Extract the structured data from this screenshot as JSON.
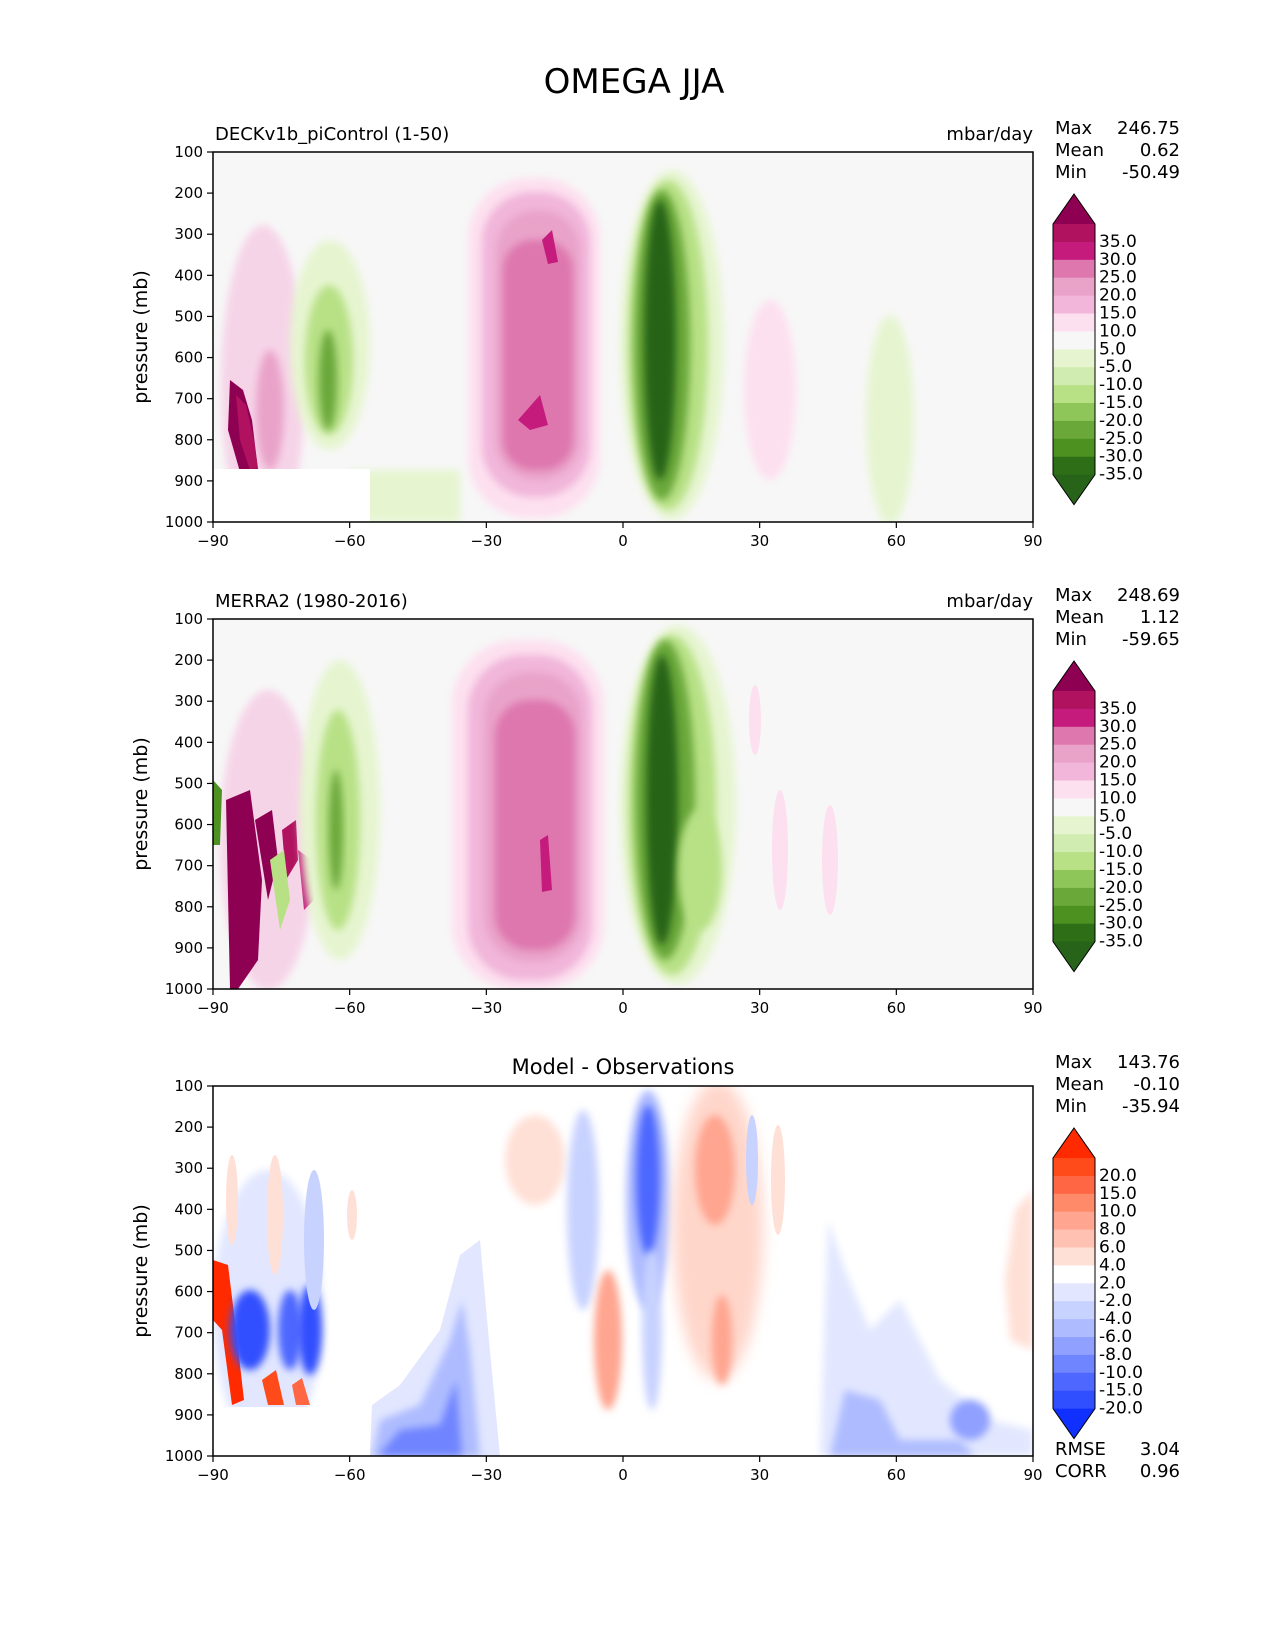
{
  "title": "OMEGA JJA",
  "axes": {
    "ylabel": "pressure (mb)",
    "yticks": [
      "100",
      "200",
      "300",
      "400",
      "500",
      "600",
      "700",
      "800",
      "900",
      "1000"
    ],
    "xticks": [
      "−90",
      "−60",
      "−30",
      "0",
      "30",
      "60",
      "90"
    ]
  },
  "panels": [
    {
      "left_title": "DECKv1b_piControl (1-50)",
      "center_title": "",
      "units": "mbar/day",
      "stats": [
        [
          "Max",
          "246.75"
        ],
        [
          "Mean",
          "0.62"
        ],
        [
          "Min",
          "-50.49"
        ]
      ],
      "extra_stats": []
    },
    {
      "left_title": "MERRA2 (1980-2016)",
      "center_title": "",
      "units": "mbar/day",
      "stats": [
        [
          "Max",
          "248.69"
        ],
        [
          "Mean",
          "1.12"
        ],
        [
          "Min",
          "-59.65"
        ]
      ],
      "extra_stats": []
    },
    {
      "left_title": "",
      "center_title": "Model - Observations",
      "units": "",
      "stats": [
        [
          "Max",
          "143.76"
        ],
        [
          "Mean",
          "-0.10"
        ],
        [
          "Min",
          "-35.94"
        ]
      ],
      "extra_stats": [
        [
          "RMSE",
          "3.04"
        ],
        [
          "CORR",
          "0.96"
        ]
      ]
    }
  ],
  "colorbars": {
    "field": {
      "labels": [
        "35.0",
        "30.0",
        "25.0",
        "20.0",
        "15.0",
        "10.0",
        "5.0",
        "-5.0",
        "-10.0",
        "-15.0",
        "-20.0",
        "-25.0",
        "-30.0",
        "-35.0"
      ],
      "colors": [
        "#8e0152",
        "#b0125f",
        "#c51b7d",
        "#de77ae",
        "#e9a3c9",
        "#f1b6da",
        "#fde0ef",
        "#f7f7f7",
        "#e6f5d0",
        "#d0ecb0",
        "#b8e186",
        "#8fc65a",
        "#6aa83a",
        "#4d9221",
        "#2d6e16",
        "#276419"
      ]
    },
    "diff": {
      "labels": [
        "20.0",
        "15.0",
        "10.0",
        "8.0",
        "6.0",
        "4.0",
        "2.0",
        "-2.0",
        "-4.0",
        "-6.0",
        "-8.0",
        "-10.0",
        "-15.0",
        "-20.0"
      ],
      "colors": [
        "#ff2a00",
        "#ff4a1a",
        "#ff6644",
        "#ff8a6a",
        "#ffa590",
        "#ffc2b2",
        "#ffe0d6",
        "#ffffff",
        "#e2e7ff",
        "#c8d2ff",
        "#aebcff",
        "#8fa0ff",
        "#6f84ff",
        "#4e68ff",
        "#3050ff",
        "#1030ff"
      ]
    }
  },
  "chart_data": [
    {
      "type": "contour",
      "title": "DECKv1b_piControl (1-50)",
      "units": "mbar/day",
      "xlabel": "",
      "ylabel": "pressure (mb)",
      "xlim": [
        -90,
        90
      ],
      "ylim": [
        1000,
        100
      ],
      "features": [
        {
          "lat": [
            -90,
            -80
          ],
          "p": [
            650,
            870
          ],
          "value": 35,
          "kind": "pos"
        },
        {
          "lat": [
            -88,
            -70
          ],
          "p": [
            250,
            880
          ],
          "value": 10,
          "kind": "pos"
        },
        {
          "lat": [
            -70,
            -60
          ],
          "p": [
            250,
            870
          ],
          "value": -10,
          "kind": "neg"
        },
        {
          "lat": [
            -34,
            -8
          ],
          "p": [
            170,
            980
          ],
          "value": 15,
          "kind": "pos"
        },
        {
          "lat": [
            -30,
            -12
          ],
          "p": [
            220,
            900
          ],
          "value": 25,
          "kind": "pos"
        },
        {
          "lat": [
            0,
            20
          ],
          "p": [
            160,
            990
          ],
          "value": -15,
          "kind": "neg"
        },
        {
          "lat": [
            3,
            12
          ],
          "p": [
            220,
            880
          ],
          "value": -35,
          "kind": "neg"
        },
        {
          "lat": [
            25,
            35
          ],
          "p": [
            300,
            900
          ],
          "value": 5,
          "kind": "pos"
        },
        {
          "lat": [
            50,
            62
          ],
          "p": [
            480,
            1000
          ],
          "value": -5,
          "kind": "neg"
        }
      ],
      "missing": {
        "lat": [
          -90,
          -55
        ],
        "p": [
          870,
          1000
        ]
      }
    },
    {
      "type": "contour",
      "title": "MERRA2 (1980-2016)",
      "units": "mbar/day",
      "xlabel": "",
      "ylabel": "pressure (mb)",
      "xlim": [
        -90,
        90
      ],
      "ylim": [
        1000,
        100
      ],
      "features": [
        {
          "lat": [
            -90,
            -78
          ],
          "p": [
            600,
            1000
          ],
          "value": 35,
          "kind": "pos"
        },
        {
          "lat": [
            -88,
            -70
          ],
          "p": [
            300,
            1000
          ],
          "value": 10,
          "kind": "pos"
        },
        {
          "lat": [
            -70,
            -60
          ],
          "p": [
            240,
            900
          ],
          "value": -10,
          "kind": "neg"
        },
        {
          "lat": [
            -36,
            -6
          ],
          "p": [
            160,
            1000
          ],
          "value": 15,
          "kind": "pos"
        },
        {
          "lat": [
            -32,
            -10
          ],
          "p": [
            220,
            900
          ],
          "value": 25,
          "kind": "pos"
        },
        {
          "lat": [
            0,
            22
          ],
          "p": [
            160,
            990
          ],
          "value": -15,
          "kind": "neg"
        },
        {
          "lat": [
            3,
            12
          ],
          "p": [
            230,
            880
          ],
          "value": -35,
          "kind": "neg"
        },
        {
          "lat": [
            28,
            44
          ],
          "p": [
            420,
            900
          ],
          "value": 5,
          "kind": "pos"
        }
      ],
      "missing": null
    },
    {
      "type": "contour",
      "title": "Model - Observations",
      "units": "",
      "xlabel": "",
      "ylabel": "pressure (mb)",
      "xlim": [
        -90,
        90
      ],
      "ylim": [
        1000,
        100
      ],
      "features": [
        {
          "lat": [
            -90,
            -86
          ],
          "p": [
            500,
            870
          ],
          "value": 20,
          "kind": "pos"
        },
        {
          "lat": [
            -88,
            -68
          ],
          "p": [
            550,
            860
          ],
          "value": -15,
          "kind": "neg"
        },
        {
          "lat": [
            -58,
            -30
          ],
          "p": [
            620,
            1000
          ],
          "value": -6,
          "kind": "neg"
        },
        {
          "lat": [
            -14,
            -8
          ],
          "p": [
            280,
            950
          ],
          "value": -4,
          "kind": "neg"
        },
        {
          "lat": [
            -6,
            0
          ],
          "p": [
            700,
            920
          ],
          "value": 4,
          "kind": "pos"
        },
        {
          "lat": [
            2,
            10
          ],
          "p": [
            150,
            700
          ],
          "value": -10,
          "kind": "neg"
        },
        {
          "lat": [
            10,
            32
          ],
          "p": [
            150,
            950
          ],
          "value": 4,
          "kind": "pos"
        },
        {
          "lat": [
            44,
            90
          ],
          "p": [
            550,
            1000
          ],
          "value": -4,
          "kind": "neg"
        },
        {
          "lat": [
            82,
            90
          ],
          "p": [
            300,
            800
          ],
          "value": 2,
          "kind": "pos"
        }
      ],
      "missing": {
        "lat": [
          -90,
          -55
        ],
        "p": [
          870,
          1000
        ]
      }
    }
  ]
}
